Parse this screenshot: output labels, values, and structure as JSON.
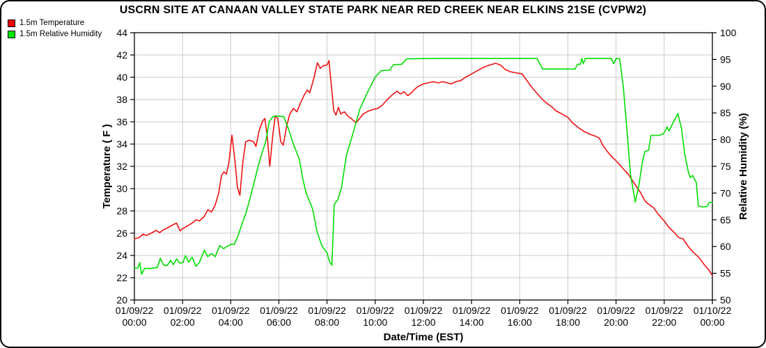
{
  "title": "USCRN SITE AT CANAAN VALLEY STATE PARK NEAR RED CREEK NEAR ELKINS 21SE (CVPW2)",
  "legend": [
    {
      "label": "1.5m Temperature",
      "color": "#ee0000"
    },
    {
      "label": "1.5m Relative Humidity",
      "color": "#00e500"
    }
  ],
  "colors": {
    "temperature": "#ee1111",
    "humidity": "#00dd00",
    "grid": "#c9c9c9",
    "axis": "#000000",
    "background": "#ffffff"
  },
  "chart_data": {
    "type": "line",
    "title": "USCRN SITE AT CANAAN VALLEY STATE PARK NEAR RED CREEK NEAR ELKINS 21SE (CVPW2)",
    "xlabel": "Date/Time (EST)",
    "grid": true,
    "legend_position": "top-left",
    "y_left": {
      "label": "Temperature ( F )",
      "min": 20,
      "max": 44,
      "tick_step": 2,
      "ticks": [
        44,
        42,
        40,
        38,
        36,
        34,
        32,
        30,
        28,
        26,
        24,
        22,
        20
      ]
    },
    "y_right": {
      "label": "Relative Humidity (%)",
      "min": 50,
      "max": 100,
      "tick_step": 5,
      "ticks": [
        100,
        95,
        90,
        85,
        80,
        75,
        70,
        65,
        60,
        55,
        50
      ]
    },
    "x_hours_range": [
      0,
      24
    ],
    "x_ticks": [
      {
        "hour": 0,
        "date": "01/09/22",
        "time": "00:00"
      },
      {
        "hour": 2,
        "date": "01/09/22",
        "time": "02:00"
      },
      {
        "hour": 4,
        "date": "01/09/22",
        "time": "04:00"
      },
      {
        "hour": 6,
        "date": "01/09/22",
        "time": "06:00"
      },
      {
        "hour": 8,
        "date": "01/09/22",
        "time": "08:00"
      },
      {
        "hour": 10,
        "date": "01/09/22",
        "time": "10:00"
      },
      {
        "hour": 12,
        "date": "01/09/22",
        "time": "12:00"
      },
      {
        "hour": 14,
        "date": "01/09/22",
        "time": "14:00"
      },
      {
        "hour": 16,
        "date": "01/09/22",
        "time": "16:00"
      },
      {
        "hour": 18,
        "date": "01/09/22",
        "time": "18:00"
      },
      {
        "hour": 20,
        "date": "01/09/22",
        "time": "20:00"
      },
      {
        "hour": 22,
        "date": "01/09/22",
        "time": "22:00"
      },
      {
        "hour": 24,
        "date": "01/10/22",
        "time": "00:00"
      }
    ],
    "series": [
      {
        "name": "1.5m Temperature",
        "axis": "left",
        "color": "#ee1111",
        "unit": "F",
        "points": [
          [
            0,
            25.5
          ],
          [
            0.2,
            25.6
          ],
          [
            0.35,
            25.9
          ],
          [
            0.5,
            25.8
          ],
          [
            0.7,
            26.0
          ],
          [
            0.9,
            26.25
          ],
          [
            1.05,
            26.05
          ],
          [
            1.2,
            26.3
          ],
          [
            1.4,
            26.5
          ],
          [
            1.6,
            26.75
          ],
          [
            1.75,
            26.9
          ],
          [
            1.9,
            26.2
          ],
          [
            2.0,
            26.4
          ],
          [
            2.2,
            26.65
          ],
          [
            2.4,
            26.9
          ],
          [
            2.55,
            27.2
          ],
          [
            2.7,
            27.1
          ],
          [
            2.9,
            27.5
          ],
          [
            3.05,
            28.1
          ],
          [
            3.2,
            27.9
          ],
          [
            3.35,
            28.5
          ],
          [
            3.5,
            29.6
          ],
          [
            3.62,
            31.2
          ],
          [
            3.72,
            31.5
          ],
          [
            3.82,
            31.3
          ],
          [
            3.92,
            32.3
          ],
          [
            4.05,
            34.8
          ],
          [
            4.17,
            32.6
          ],
          [
            4.28,
            30.1
          ],
          [
            4.38,
            29.4
          ],
          [
            4.5,
            32.3
          ],
          [
            4.62,
            34.2
          ],
          [
            4.78,
            34.35
          ],
          [
            4.95,
            34.2
          ],
          [
            5.05,
            33.8
          ],
          [
            5.18,
            35.2
          ],
          [
            5.32,
            36.05
          ],
          [
            5.42,
            36.3
          ],
          [
            5.52,
            34.6
          ],
          [
            5.62,
            32.0
          ],
          [
            5.75,
            34.9
          ],
          [
            5.85,
            36.55
          ],
          [
            5.95,
            36.3
          ],
          [
            6.08,
            34.2
          ],
          [
            6.18,
            33.9
          ],
          [
            6.32,
            35.6
          ],
          [
            6.45,
            36.7
          ],
          [
            6.6,
            37.2
          ],
          [
            6.75,
            36.9
          ],
          [
            6.9,
            37.7
          ],
          [
            7.05,
            38.4
          ],
          [
            7.18,
            38.85
          ],
          [
            7.28,
            38.6
          ],
          [
            7.45,
            39.9
          ],
          [
            7.6,
            41.3
          ],
          [
            7.72,
            40.8
          ],
          [
            7.85,
            41.05
          ],
          [
            8.0,
            41.1
          ],
          [
            8.08,
            41.5
          ],
          [
            8.18,
            39.2
          ],
          [
            8.28,
            37.0
          ],
          [
            8.37,
            36.6
          ],
          [
            8.47,
            37.3
          ],
          [
            8.57,
            36.7
          ],
          [
            8.72,
            36.9
          ],
          [
            8.87,
            36.5
          ],
          [
            9.0,
            36.3
          ],
          [
            9.2,
            35.9
          ],
          [
            9.35,
            36.3
          ],
          [
            9.5,
            36.7
          ],
          [
            9.7,
            36.95
          ],
          [
            9.9,
            37.1
          ],
          [
            10.1,
            37.2
          ],
          [
            10.3,
            37.5
          ],
          [
            10.5,
            38.0
          ],
          [
            10.7,
            38.4
          ],
          [
            10.9,
            38.75
          ],
          [
            11.05,
            38.5
          ],
          [
            11.2,
            38.7
          ],
          [
            11.35,
            38.35
          ],
          [
            11.5,
            38.6
          ],
          [
            11.65,
            38.95
          ],
          [
            11.8,
            39.2
          ],
          [
            12.0,
            39.4
          ],
          [
            12.2,
            39.5
          ],
          [
            12.4,
            39.6
          ],
          [
            12.6,
            39.5
          ],
          [
            12.8,
            39.6
          ],
          [
            13.0,
            39.5
          ],
          [
            13.15,
            39.4
          ],
          [
            13.35,
            39.6
          ],
          [
            13.55,
            39.7
          ],
          [
            13.75,
            40.0
          ],
          [
            14.0,
            40.3
          ],
          [
            14.25,
            40.6
          ],
          [
            14.5,
            40.9
          ],
          [
            14.75,
            41.1
          ],
          [
            15.0,
            41.25
          ],
          [
            15.2,
            41.1
          ],
          [
            15.4,
            40.7
          ],
          [
            15.6,
            40.5
          ],
          [
            15.85,
            40.4
          ],
          [
            16.1,
            40.3
          ],
          [
            16.3,
            39.7
          ],
          [
            16.5,
            39.1
          ],
          [
            16.7,
            38.6
          ],
          [
            16.9,
            38.1
          ],
          [
            17.1,
            37.7
          ],
          [
            17.3,
            37.4
          ],
          [
            17.5,
            37.0
          ],
          [
            17.75,
            36.7
          ],
          [
            18.0,
            36.4
          ],
          [
            18.2,
            35.9
          ],
          [
            18.45,
            35.45
          ],
          [
            18.7,
            35.1
          ],
          [
            18.95,
            34.85
          ],
          [
            19.15,
            34.7
          ],
          [
            19.3,
            34.55
          ],
          [
            19.45,
            33.9
          ],
          [
            19.65,
            33.3
          ],
          [
            19.85,
            32.8
          ],
          [
            20.0,
            32.5
          ],
          [
            20.25,
            31.9
          ],
          [
            20.5,
            31.3
          ],
          [
            20.75,
            30.5
          ],
          [
            21.0,
            29.7
          ],
          [
            21.2,
            28.9
          ],
          [
            21.35,
            28.6
          ],
          [
            21.55,
            28.3
          ],
          [
            21.75,
            27.7
          ],
          [
            22.0,
            27.1
          ],
          [
            22.2,
            26.5
          ],
          [
            22.4,
            26.1
          ],
          [
            22.6,
            25.6
          ],
          [
            22.78,
            25.5
          ],
          [
            23.0,
            24.8
          ],
          [
            23.2,
            24.3
          ],
          [
            23.45,
            23.8
          ],
          [
            23.65,
            23.2
          ],
          [
            23.85,
            22.7
          ],
          [
            24.0,
            22.2
          ]
        ]
      },
      {
        "name": "1.5m Relative Humidity",
        "axis": "right",
        "color": "#00dd00",
        "unit": "%",
        "points": [
          [
            0,
            56.0
          ],
          [
            0.15,
            56.0
          ],
          [
            0.22,
            57.0
          ],
          [
            0.3,
            54.8
          ],
          [
            0.42,
            55.9
          ],
          [
            0.7,
            55.9
          ],
          [
            0.95,
            56.1
          ],
          [
            1.08,
            57.8
          ],
          [
            1.2,
            56.6
          ],
          [
            1.35,
            56.4
          ],
          [
            1.5,
            57.4
          ],
          [
            1.62,
            56.6
          ],
          [
            1.75,
            57.7
          ],
          [
            1.88,
            56.9
          ],
          [
            2.02,
            57.0
          ],
          [
            2.12,
            58.3
          ],
          [
            2.25,
            57.1
          ],
          [
            2.4,
            58.0
          ],
          [
            2.55,
            56.3
          ],
          [
            2.7,
            57.0
          ],
          [
            2.9,
            59.3
          ],
          [
            3.05,
            58.1
          ],
          [
            3.2,
            58.7
          ],
          [
            3.35,
            58.1
          ],
          [
            3.55,
            60.2
          ],
          [
            3.7,
            59.6
          ],
          [
            3.85,
            60.0
          ],
          [
            4.0,
            60.4
          ],
          [
            4.15,
            60.4
          ],
          [
            4.3,
            62.0
          ],
          [
            4.5,
            64.6
          ],
          [
            4.65,
            66.5
          ],
          [
            4.8,
            69.0
          ],
          [
            5.0,
            72.5
          ],
          [
            5.15,
            75.2
          ],
          [
            5.3,
            77.5
          ],
          [
            5.45,
            79.6
          ],
          [
            5.6,
            83.4
          ],
          [
            5.75,
            84.3
          ],
          [
            6.0,
            84.4
          ],
          [
            6.2,
            84.3
          ],
          [
            6.4,
            82.0
          ],
          [
            6.6,
            79.2
          ],
          [
            6.85,
            76.3
          ],
          [
            7.0,
            72.5
          ],
          [
            7.12,
            70.2
          ],
          [
            7.4,
            67.0
          ],
          [
            7.6,
            62.5
          ],
          [
            7.8,
            60.0
          ],
          [
            8.0,
            58.8
          ],
          [
            8.1,
            57.2
          ],
          [
            8.2,
            56.5
          ],
          [
            8.3,
            67.9
          ],
          [
            8.45,
            68.8
          ],
          [
            8.6,
            71.0
          ],
          [
            8.8,
            77.0
          ],
          [
            9.1,
            81.5
          ],
          [
            9.35,
            85.6
          ],
          [
            9.65,
            88.6
          ],
          [
            10.0,
            91.7
          ],
          [
            10.25,
            92.9
          ],
          [
            10.6,
            93.0
          ],
          [
            10.75,
            94.0
          ],
          [
            11.1,
            94.1
          ],
          [
            11.3,
            95.1
          ],
          [
            12.5,
            95.2
          ],
          [
            14.0,
            95.2
          ],
          [
            15.5,
            95.2
          ],
          [
            16.72,
            95.2
          ],
          [
            16.82,
            94.3
          ],
          [
            16.95,
            93.2
          ],
          [
            18.3,
            93.2
          ],
          [
            18.4,
            94.1
          ],
          [
            18.52,
            94.1
          ],
          [
            18.58,
            95.2
          ],
          [
            18.64,
            94.2
          ],
          [
            18.73,
            95.2
          ],
          [
            19.8,
            95.2
          ],
          [
            19.9,
            94.2
          ],
          [
            20.0,
            95.2
          ],
          [
            20.15,
            95.1
          ],
          [
            20.3,
            90.0
          ],
          [
            20.45,
            82.0
          ],
          [
            20.6,
            73.5
          ],
          [
            20.8,
            68.3
          ],
          [
            20.95,
            71.5
          ],
          [
            21.1,
            76.0
          ],
          [
            21.2,
            77.8
          ],
          [
            21.35,
            78.0
          ],
          [
            21.45,
            80.8
          ],
          [
            21.75,
            80.8
          ],
          [
            21.95,
            81.0
          ],
          [
            22.05,
            81.7
          ],
          [
            22.12,
            82.4
          ],
          [
            22.2,
            81.6
          ],
          [
            22.35,
            83.0
          ],
          [
            22.57,
            84.9
          ],
          [
            22.72,
            82.0
          ],
          [
            22.85,
            77.4
          ],
          [
            23.0,
            74.0
          ],
          [
            23.08,
            72.9
          ],
          [
            23.18,
            73.3
          ],
          [
            23.33,
            72.0
          ],
          [
            23.42,
            67.6
          ],
          [
            23.6,
            67.4
          ],
          [
            23.78,
            67.5
          ],
          [
            23.88,
            68.3
          ],
          [
            24.0,
            68.2
          ]
        ]
      }
    ]
  }
}
